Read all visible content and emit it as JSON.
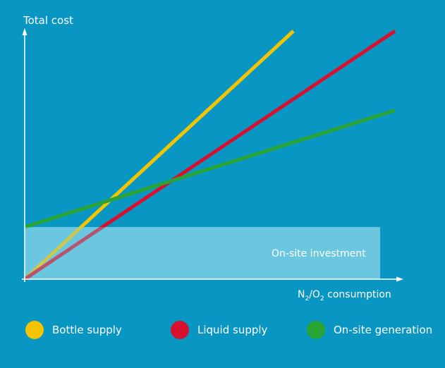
{
  "chart_data": {
    "type": "line",
    "ylabel": "Total cost",
    "xlabel_parts": [
      "N",
      "2",
      "/O",
      "2",
      " consumption"
    ],
    "xlim": [
      0,
      100
    ],
    "ylim": [
      0,
      100
    ],
    "grid": false,
    "legend_position": "bottom",
    "annotation": {
      "label": "On-site investment",
      "y_from": 0,
      "y_to": 21,
      "x_from": 0,
      "x_to": 100,
      "color": "#7fd0e6"
    },
    "series": [
      {
        "name": "Bottle supply",
        "color": "#f5c400",
        "x": [
          0,
          71.5
        ],
        "y": [
          0,
          100
        ]
      },
      {
        "name": "Liquid supply",
        "color": "#d7102e",
        "x": [
          0,
          98.5
        ],
        "y": [
          0,
          100
        ]
      },
      {
        "name": "On-site generation",
        "color": "#2aa533",
        "x": [
          0,
          98.5
        ],
        "y": [
          21,
          68
        ]
      }
    ]
  }
}
